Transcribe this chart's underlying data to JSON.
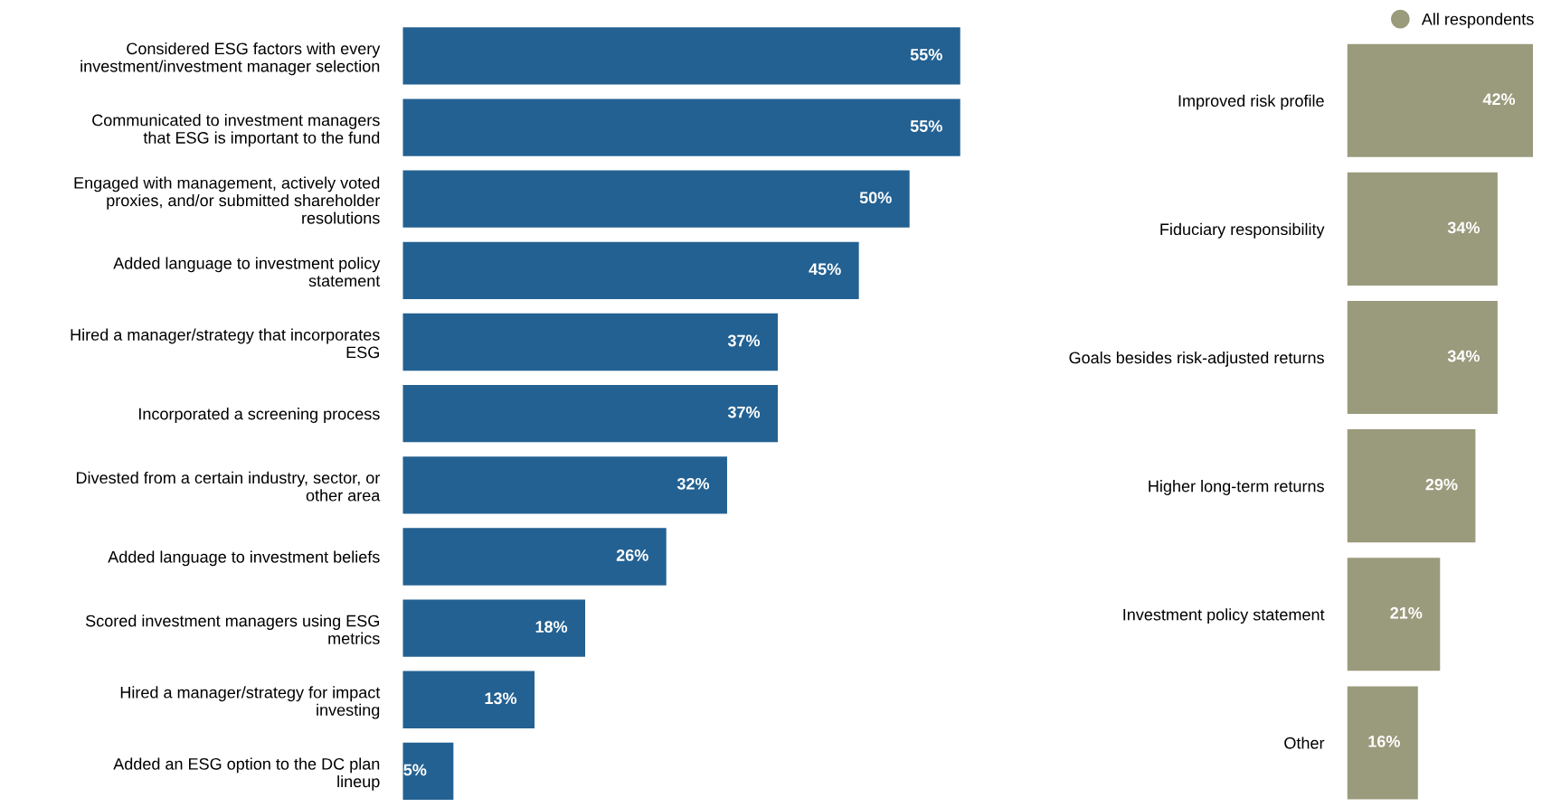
{
  "chart_data": [
    {
      "type": "bar",
      "orientation": "horizontal",
      "tick_labels": "y",
      "grid": false,
      "legend": false,
      "categories": [
        "Considered ESG factors with every\ninvestment/investment manager selection",
        "Communicated to investment managers\nthat ESG is important to the fund",
        "Engaged with management, actively voted\nproxies, and/or submitted shareholder\nresolutions",
        "Added language to investment policy\nstatement",
        "Hired a manager/strategy that incorporates\nESG",
        "Incorporated a screening process",
        "Divested from a certain industry, sector, or\nother area",
        "Added language to investment beliefs",
        "Scored investment managers using ESG\nmetrics",
        "Hired a manager/strategy for impact\ninvesting",
        "Added an ESG option to the DC plan\nlineup"
      ],
      "series": [
        {
          "color": "#236192",
          "values": [
            55,
            55,
            50,
            45,
            37,
            37,
            32,
            26,
            18,
            13,
            5
          ],
          "value_labels": [
            "55%",
            "55%",
            "50%",
            "45%",
            "37%",
            "37%",
            "32%",
            "26%",
            "18%",
            "13%",
            "5%"
          ]
        }
      ]
    },
    {
      "type": "bar",
      "orientation": "horizontal",
      "tick_labels": "y",
      "grid": false,
      "legend": "top right",
      "categories": [
        "Improved risk profile",
        "Fiduciary responsibility",
        "Goals besides risk-adjusted returns",
        "Higher long-term returns",
        "Investment policy statement",
        "Other"
      ],
      "series": [
        {
          "name": "All respondents",
          "color": "#9a9a7c",
          "values": [
            42,
            34,
            34,
            29,
            21,
            16
          ],
          "value_labels": [
            "42%",
            "34%",
            "34%",
            "29%",
            "21%",
            "16%"
          ]
        }
      ]
    }
  ]
}
